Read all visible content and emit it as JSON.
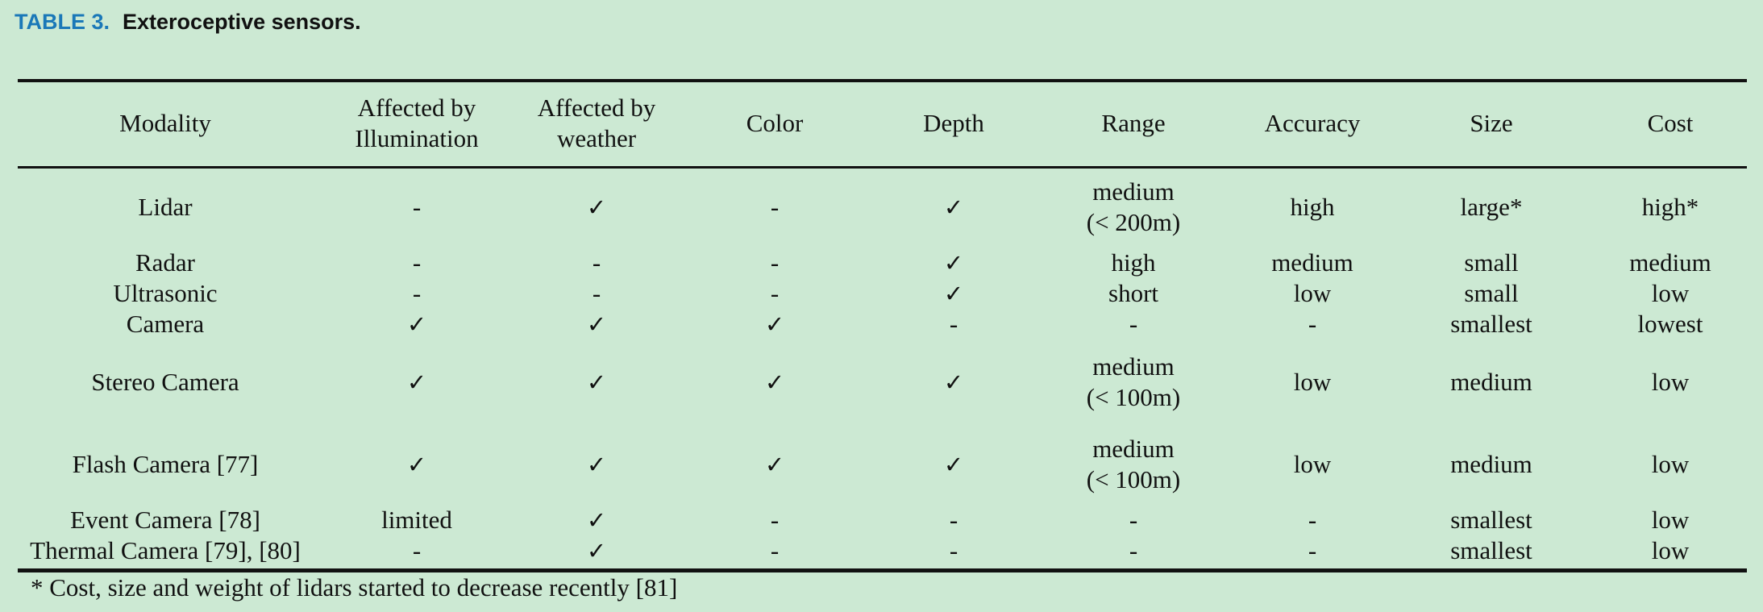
{
  "caption": {
    "label": "TABLE 3.",
    "title": "Exteroceptive sensors."
  },
  "table": {
    "headers": [
      [
        "Modality"
      ],
      [
        "Affected by",
        "Illumination"
      ],
      [
        "Affected by",
        "weather"
      ],
      [
        "Color"
      ],
      [
        "Depth"
      ],
      [
        "Range"
      ],
      [
        "Accuracy"
      ],
      [
        "Size"
      ],
      [
        "Cost"
      ]
    ],
    "rows": [
      [
        [
          "Lidar"
        ],
        [
          "-"
        ],
        [
          "✓"
        ],
        [
          "-"
        ],
        [
          "✓"
        ],
        [
          "medium",
          "(< 200m)"
        ],
        [
          "high"
        ],
        [
          "large*"
        ],
        [
          "high*"
        ]
      ],
      [
        [
          "Radar"
        ],
        [
          "-"
        ],
        [
          "-"
        ],
        [
          "-"
        ],
        [
          "✓"
        ],
        [
          "high"
        ],
        [
          "medium"
        ],
        [
          "small"
        ],
        [
          "medium"
        ]
      ],
      [
        [
          "Ultrasonic"
        ],
        [
          "-"
        ],
        [
          "-"
        ],
        [
          "-"
        ],
        [
          "✓"
        ],
        [
          "short"
        ],
        [
          "low"
        ],
        [
          "small"
        ],
        [
          "low"
        ]
      ],
      [
        [
          "Camera"
        ],
        [
          "✓"
        ],
        [
          "✓"
        ],
        [
          "✓"
        ],
        [
          "-"
        ],
        [
          "-"
        ],
        [
          "-"
        ],
        [
          "smallest"
        ],
        [
          "lowest"
        ]
      ],
      [
        [
          "Stereo Camera"
        ],
        [
          "✓"
        ],
        [
          "✓"
        ],
        [
          "✓"
        ],
        [
          "✓"
        ],
        [
          "medium",
          "(< 100m)"
        ],
        [
          "low"
        ],
        [
          "medium"
        ],
        [
          "low"
        ]
      ],
      [
        [
          "Flash Camera [77]"
        ],
        [
          "✓"
        ],
        [
          "✓"
        ],
        [
          "✓"
        ],
        [
          "✓"
        ],
        [
          "medium",
          "(< 100m)"
        ],
        [
          "low"
        ],
        [
          "medium"
        ],
        [
          "low"
        ]
      ],
      [
        [
          "Event Camera [78]"
        ],
        [
          "limited"
        ],
        [
          "✓"
        ],
        [
          "-"
        ],
        [
          "-"
        ],
        [
          "-"
        ],
        [
          "-"
        ],
        [
          "smallest"
        ],
        [
          "low"
        ]
      ],
      [
        [
          "Thermal Camera [79], [80]"
        ],
        [
          "-"
        ],
        [
          "✓"
        ],
        [
          "-"
        ],
        [
          "-"
        ],
        [
          "-"
        ],
        [
          "-"
        ],
        [
          "smallest"
        ],
        [
          "low"
        ]
      ]
    ]
  },
  "footnote": "* Cost, size and weight of lidars started to decrease recently [81]"
}
